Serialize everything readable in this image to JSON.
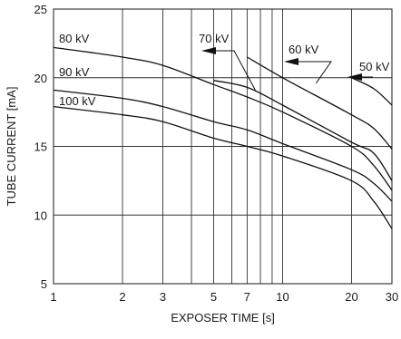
{
  "chart_data": {
    "type": "line",
    "title": "",
    "xlabel": "EXPOSER TIME [s]",
    "ylabel": "TUBE CURRENT [mA]",
    "x_scale": "log",
    "xlim": [
      1,
      30
    ],
    "ylim": [
      5,
      25
    ],
    "x_ticks": [
      1,
      2,
      3,
      5,
      7,
      10,
      20,
      30
    ],
    "x_tick_labels": [
      "1",
      "2",
      "3",
      "5",
      "7",
      "10",
      "20",
      "30"
    ],
    "x_grid": [
      1,
      2,
      3,
      4,
      5,
      6,
      7,
      8,
      9,
      10,
      20,
      30
    ],
    "y_ticks": [
      5,
      10,
      15,
      20,
      25
    ],
    "y_tick_labels": [
      "5",
      "10",
      "15",
      "20",
      "25"
    ],
    "grid": true,
    "series": [
      {
        "name": "80 kV",
        "x": [
          1,
          2,
          3,
          5,
          7,
          10,
          20,
          25,
          30
        ],
        "y": [
          22.2,
          21.5,
          20.9,
          19.5,
          18.6,
          17.5,
          15.0,
          13.6,
          11.8
        ]
      },
      {
        "name": "90 kV",
        "x": [
          1,
          2,
          3,
          5,
          7,
          10,
          20,
          25,
          30
        ],
        "y": [
          19.1,
          18.5,
          17.9,
          16.8,
          16.2,
          15.2,
          13.3,
          12.3,
          11.0
        ]
      },
      {
        "name": "100 kV",
        "x": [
          1,
          2,
          3,
          5,
          7,
          10,
          20,
          25,
          30
        ],
        "y": [
          17.9,
          17.3,
          16.8,
          15.6,
          15.0,
          14.3,
          12.5,
          11.0,
          9.0
        ]
      },
      {
        "name": "70 kV",
        "x": [
          5,
          7,
          10,
          20,
          25,
          30
        ],
        "y": [
          19.8,
          19.3,
          18.0,
          15.3,
          14.5,
          12.5
        ]
      },
      {
        "name": "60 kV",
        "x": [
          7,
          10,
          20,
          25,
          30
        ],
        "y": [
          21.5,
          20.0,
          17.3,
          16.3,
          14.8
        ]
      },
      {
        "name": "50 kV",
        "x": [
          20,
          25,
          30
        ],
        "y": [
          20.0,
          19.2,
          18.0
        ]
      }
    ],
    "annotations": [
      {
        "text": "80 kV"
      },
      {
        "text": "90 kV"
      },
      {
        "text": "100 kV"
      },
      {
        "text": "70 kV",
        "arrow": "left"
      },
      {
        "text": "60 kV",
        "arrow": "left"
      },
      {
        "text": "50 kV",
        "arrow": "left"
      }
    ]
  }
}
